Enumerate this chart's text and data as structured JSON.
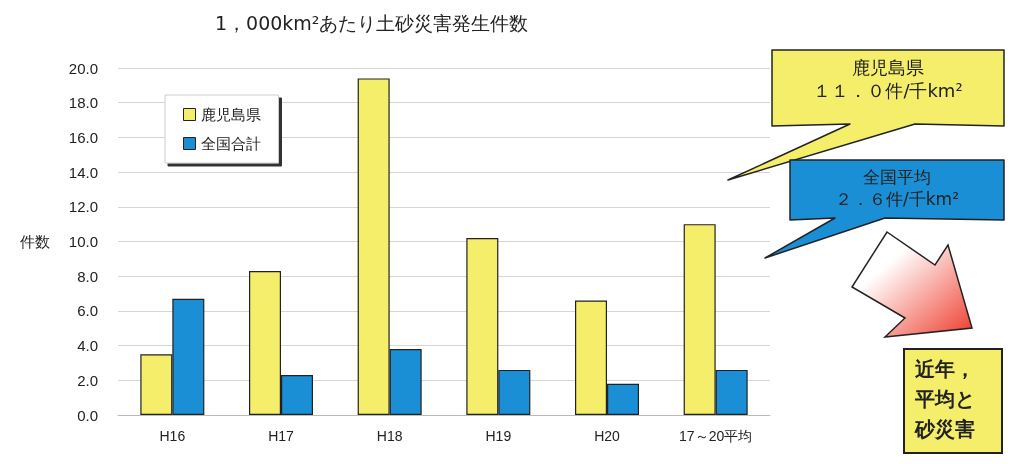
{
  "chart_data": {
    "type": "bar",
    "title": "1，000km²あたり土砂災害発生件数",
    "ylabel": "件数",
    "categories": [
      "H16",
      "H17",
      "H18",
      "H19",
      "H20",
      "17～20平均"
    ],
    "series": [
      {
        "name": "鹿児島県",
        "color": "#f4ee6a",
        "values": [
          3.5,
          8.3,
          19.4,
          10.2,
          6.6,
          11.0
        ]
      },
      {
        "name": "全国合計",
        "color": "#1b8fd6",
        "values": [
          6.7,
          2.3,
          3.8,
          2.6,
          1.8,
          2.6
        ]
      }
    ],
    "ylim": [
      0,
      20
    ],
    "yticks": [
      {
        "value": 0,
        "label": "0.0"
      },
      {
        "value": 2,
        "label": "2.0"
      },
      {
        "value": 4,
        "label": "4.0"
      },
      {
        "value": 6,
        "label": "6.0"
      },
      {
        "value": 8,
        "label": "8.0"
      },
      {
        "value": 10,
        "label": "10.0"
      },
      {
        "value": 12,
        "label": "12.0"
      },
      {
        "value": 14,
        "label": "14.0"
      },
      {
        "value": 16,
        "label": "16.0"
      },
      {
        "value": 18,
        "label": "18.0"
      },
      {
        "value": 20,
        "label": "20.0"
      }
    ],
    "grid": "y",
    "legend": "top left",
    "annotations": [
      "鹿児島県",
      "１１．０件/千km²",
      "全国平均",
      "２．６件/千km²",
      "近年，平均と砂災害"
    ]
  }
}
